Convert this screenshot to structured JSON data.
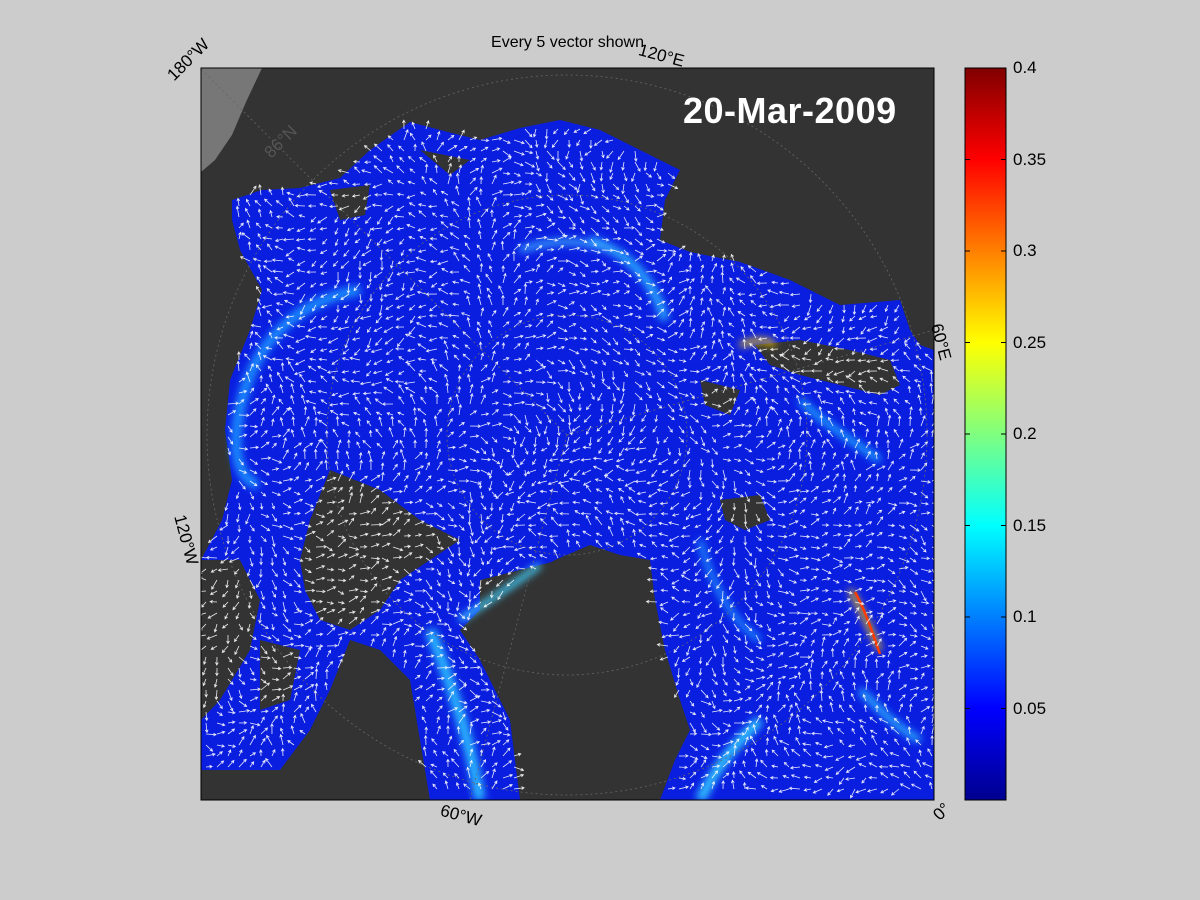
{
  "title": "Every 5 vector shown",
  "date": "20-Mar-2009",
  "longitude_labels": {
    "lon_180w": "180°W",
    "lon_120e": "120°E",
    "lon_60e": "60°E",
    "lon_120w": "120°W",
    "lon_60w": "60°W",
    "lon_0": "0°"
  },
  "latitude_labels": {
    "lat_86n": "86°N"
  },
  "colorbar": {
    "colormap": "jet",
    "min": 0,
    "max": 0.4,
    "ticks": [
      "0.4",
      "0.35",
      "0.3",
      "0.25",
      "0.2",
      "0.15",
      "0.1",
      "0.05"
    ]
  },
  "colors": {
    "figure_background": "#cccccc",
    "land": "#333333",
    "ice_speed_low": "#0a1ee0",
    "vectors": "#ffffff"
  }
}
